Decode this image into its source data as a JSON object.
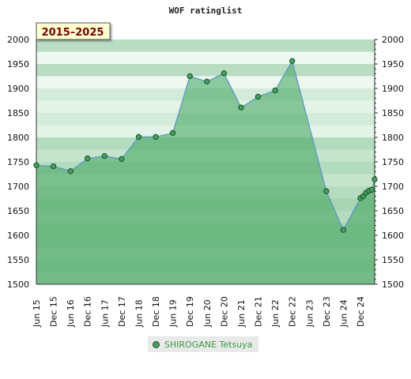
{
  "chart_data": {
    "type": "area",
    "title": "WOF ratinglist",
    "badge": "2015–2025",
    "ylim": [
      1500,
      2000
    ],
    "y_ticks": [
      1500,
      1550,
      1600,
      1650,
      1700,
      1750,
      1800,
      1850,
      1900,
      1950,
      2000
    ],
    "x_tick_labels": [
      "Jun 15",
      "Dec 15",
      "Jun 16",
      "Dec 16",
      "Jun 17",
      "Dec 17",
      "Jun 18",
      "Dec 18",
      "Jun 19",
      "Dec 19",
      "Jun 20",
      "Dec 20",
      "Jun 21",
      "Dec 21",
      "Jun 22",
      "Dec 22",
      "Jun 23",
      "Dec 23",
      "Jun 24",
      "Dec 24"
    ],
    "series": [
      {
        "name": "SHIROGANE Tetsuya",
        "color": "#3ca35a",
        "points": [
          {
            "x": "2015-06",
            "y": 1743
          },
          {
            "x": "2015-12",
            "y": 1741
          },
          {
            "x": "2016-06",
            "y": 1731
          },
          {
            "x": "2016-12",
            "y": 1757
          },
          {
            "x": "2017-06",
            "y": 1762
          },
          {
            "x": "2017-12",
            "y": 1756
          },
          {
            "x": "2018-06",
            "y": 1801
          },
          {
            "x": "2018-12",
            "y": 1801
          },
          {
            "x": "2019-06",
            "y": 1809
          },
          {
            "x": "2019-12",
            "y": 1925
          },
          {
            "x": "2020-06",
            "y": 1914
          },
          {
            "x": "2020-12",
            "y": 1931
          },
          {
            "x": "2021-06",
            "y": 1861
          },
          {
            "x": "2021-12",
            "y": 1883
          },
          {
            "x": "2022-06",
            "y": 1896
          },
          {
            "x": "2022-12",
            "y": 1956
          },
          {
            "x": "2023-12",
            "y": 1690
          },
          {
            "x": "2024-06",
            "y": 1611
          },
          {
            "x": "2024-12",
            "y": 1676
          },
          {
            "x": "2025-01",
            "y": 1680
          },
          {
            "x": "2025-02",
            "y": 1687
          },
          {
            "x": "2025-03",
            "y": 1691
          },
          {
            "x": "2025-04",
            "y": 1693
          },
          {
            "x": "2025-05",
            "y": 1714
          }
        ]
      }
    ],
    "legend": "bottom-center",
    "grid": true
  }
}
